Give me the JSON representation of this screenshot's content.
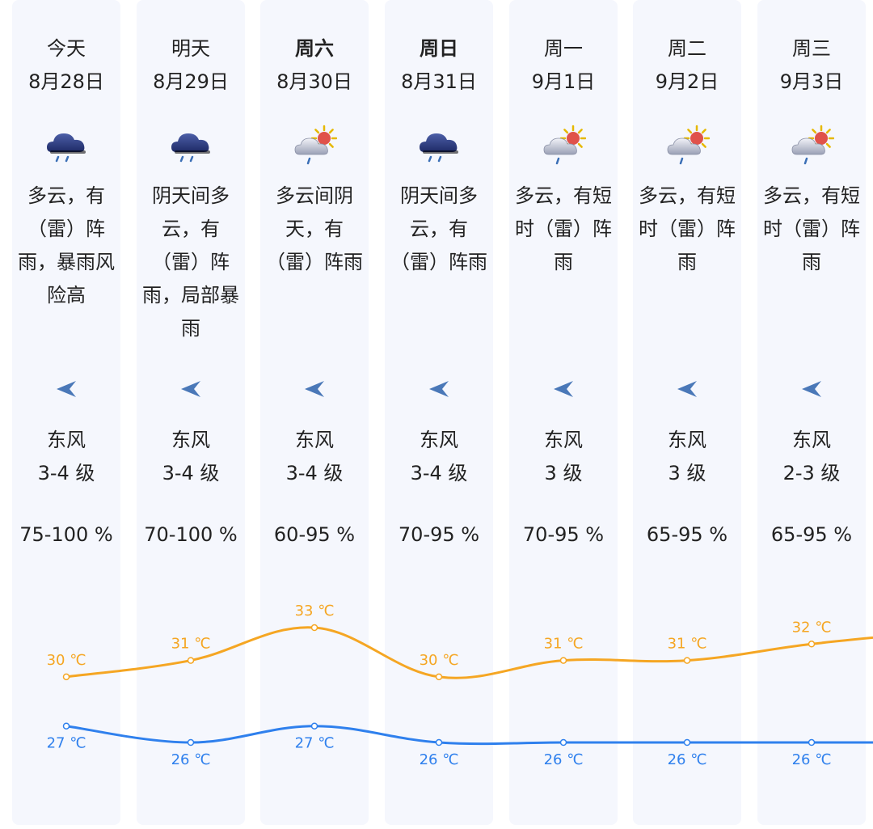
{
  "days": [
    {
      "day": "今天",
      "bold": false,
      "date": "8月28日",
      "icon": "heavy-rain-icon",
      "desc": [
        "多云，有",
        "（雷）阵",
        "雨，暴雨风",
        "险高"
      ],
      "wind_dir": "东风",
      "wind_level": "3-4 级",
      "humidity": "75-100 %",
      "high": 30,
      "low": 27,
      "high_label": "30 ℃",
      "low_label": "27 ℃"
    },
    {
      "day": "明天",
      "bold": false,
      "date": "8月29日",
      "icon": "heavy-rain-icon",
      "desc": [
        "阴天间多",
        "云，有",
        "（雷）阵",
        "雨，局部暴",
        "雨"
      ],
      "wind_dir": "东风",
      "wind_level": "3-4 级",
      "humidity": "70-100 %",
      "high": 31,
      "low": 26,
      "high_label": "31 ℃",
      "low_label": "26 ℃"
    },
    {
      "day": "周六",
      "bold": true,
      "date": "8月30日",
      "icon": "sun-cloud-rain-icon",
      "desc": [
        "多云间阴",
        "天，有",
        "（雷）阵雨"
      ],
      "wind_dir": "东风",
      "wind_level": "3-4 级",
      "humidity": "60-95 %",
      "high": 33,
      "low": 27,
      "high_label": "33 ℃",
      "low_label": "27 ℃"
    },
    {
      "day": "周日",
      "bold": true,
      "date": "8月31日",
      "icon": "heavy-rain-icon",
      "desc": [
        "阴天间多",
        "云，有",
        "（雷）阵雨"
      ],
      "wind_dir": "东风",
      "wind_level": "3-4 级",
      "humidity": "70-95 %",
      "high": 30,
      "low": 26,
      "high_label": "30 ℃",
      "low_label": "26 ℃"
    },
    {
      "day": "周一",
      "bold": false,
      "date": "9月1日",
      "icon": "sun-cloud-rain-icon",
      "desc": [
        "多云，有短",
        "时（雷）阵",
        "雨"
      ],
      "wind_dir": "东风",
      "wind_level": "3 级",
      "humidity": "70-95 %",
      "high": 31,
      "low": 26,
      "high_label": "31 ℃",
      "low_label": "26 ℃"
    },
    {
      "day": "周二",
      "bold": false,
      "date": "9月2日",
      "icon": "sun-cloud-rain-icon",
      "desc": [
        "多云，有短",
        "时（雷）阵",
        "雨"
      ],
      "wind_dir": "东风",
      "wind_level": "3 级",
      "humidity": "65-95 %",
      "high": 31,
      "low": 26,
      "high_label": "31 ℃",
      "low_label": "26 ℃"
    },
    {
      "day": "周三",
      "bold": false,
      "date": "9月3日",
      "icon": "sun-cloud-rain-icon",
      "desc": [
        "多云，有短",
        "时（雷）阵",
        "雨"
      ],
      "wind_dir": "东风",
      "wind_level": "2-3 级",
      "humidity": "65-95 %",
      "high": 32,
      "low": 26,
      "high_label": "32 ℃",
      "low_label": "26 ℃"
    }
  ],
  "colors": {
    "high_line": "#f5a623",
    "low_line": "#2f80ed",
    "column_bg": "#f5f7fd",
    "arrow": "#4a78b8"
  }
}
